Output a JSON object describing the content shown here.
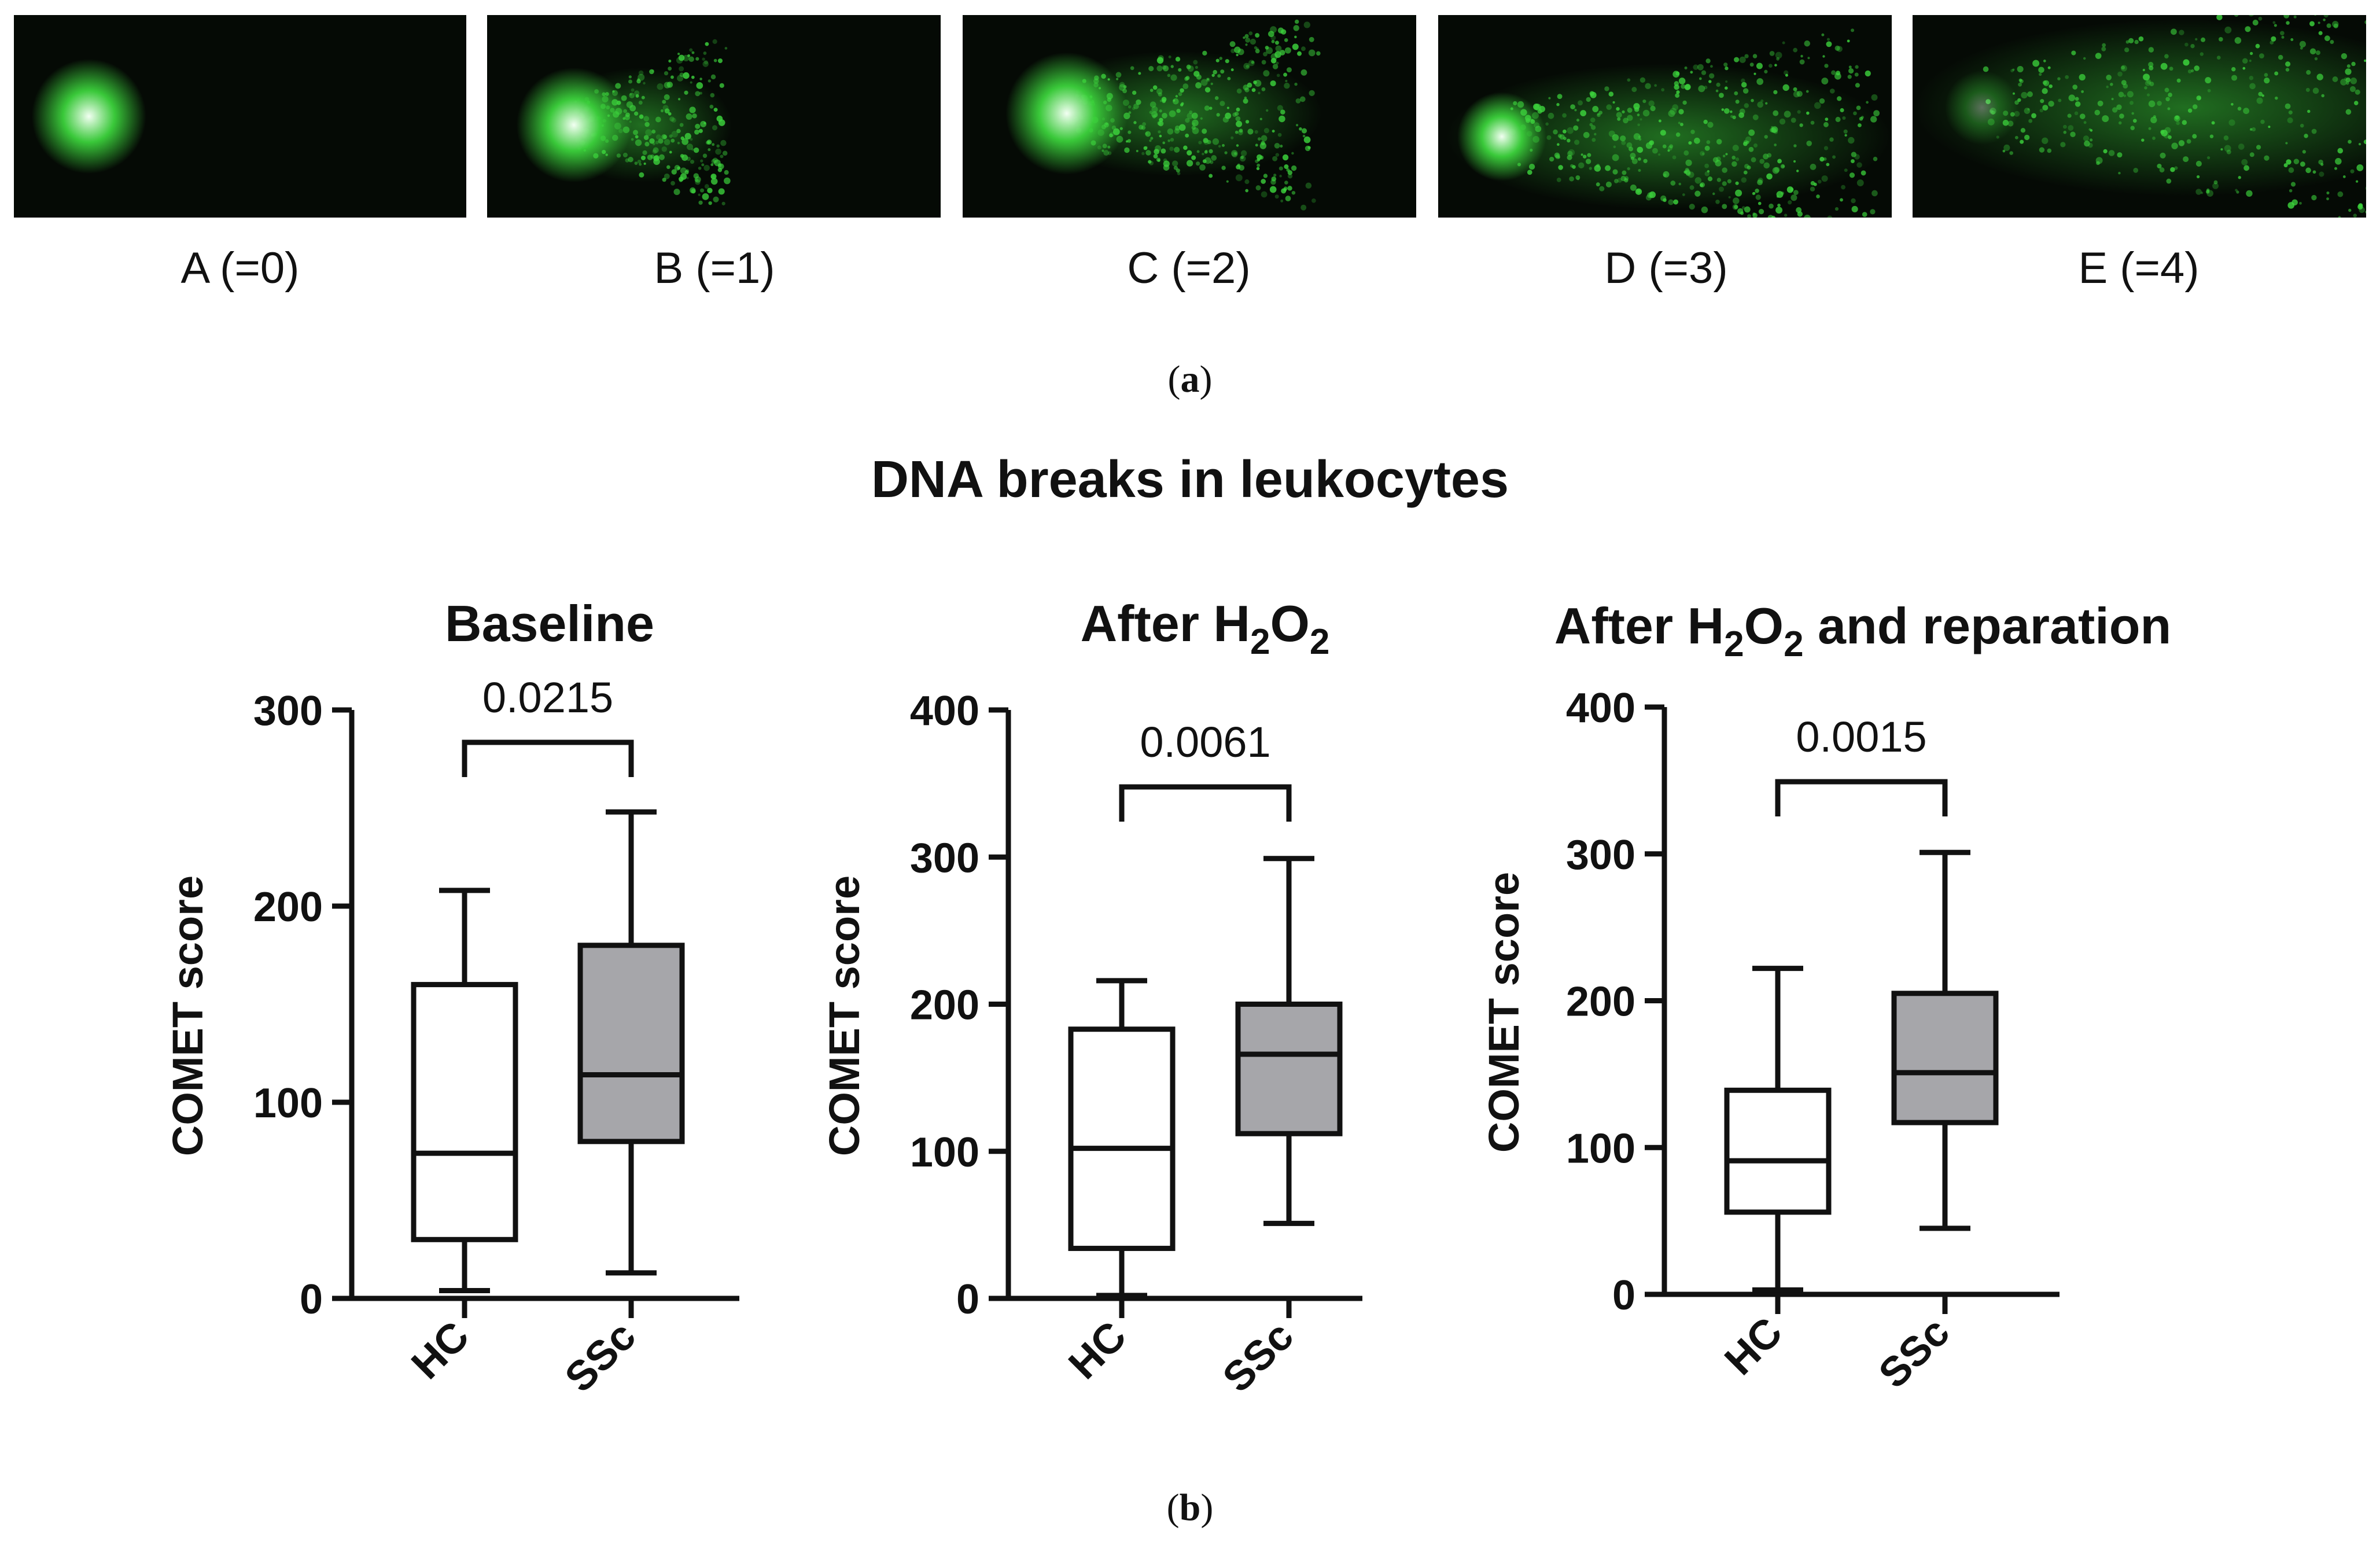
{
  "panel_a": {
    "caption": {
      "pre": "(",
      "letter": "a",
      "post": ")"
    },
    "comets": [
      {
        "label": "A (=0)",
        "score": 0
      },
      {
        "label": "B (=1)",
        "score": 1
      },
      {
        "label": "C (=2)",
        "score": 2
      },
      {
        "label": "D (=3)",
        "score": 3
      },
      {
        "label": "E (=4)",
        "score": 4
      }
    ]
  },
  "panel_b": {
    "caption": {
      "pre": "(",
      "letter": "b",
      "post": ")"
    },
    "title": "DNA breaks in leukocytes"
  },
  "colors": {
    "comet_glow": "#3cd23c",
    "comet_head": "#f2fff2",
    "hc_box": "#ffffff",
    "ssc_box": "#a6a6aa",
    "stroke": "#111111"
  },
  "chart_data": [
    {
      "type": "box",
      "title": {
        "main": "Baseline",
        "sub1": "",
        "mid": "",
        "sub2": "",
        "rest": ""
      },
      "ylabel": "COMET score",
      "ylim": [
        0,
        300
      ],
      "yticks": [
        0,
        100,
        200,
        300
      ],
      "categories": [
        "HC",
        "SSc"
      ],
      "boxes": [
        {
          "group": "HC",
          "min": 4,
          "q1": 30,
          "median": 74,
          "q3": 160,
          "max": 208
        },
        {
          "group": "SSc",
          "min": 13,
          "q1": 80,
          "median": 114,
          "q3": 180,
          "max": 248
        }
      ],
      "p_value": "0.0215"
    },
    {
      "type": "box",
      "title": {
        "main": "After H",
        "sub1": "2",
        "mid": "O",
        "sub2": "2",
        "rest": ""
      },
      "ylabel": "COMET score",
      "ylim": [
        0,
        400
      ],
      "yticks": [
        0,
        100,
        200,
        300,
        400
      ],
      "categories": [
        "HC",
        "SSc"
      ],
      "boxes": [
        {
          "group": "HC",
          "min": 2,
          "q1": 34,
          "median": 102,
          "q3": 183,
          "max": 216
        },
        {
          "group": "SSc",
          "min": 51,
          "q1": 112,
          "median": 166,
          "q3": 200,
          "max": 299
        }
      ],
      "p_value": "0.0061"
    },
    {
      "type": "box",
      "title": {
        "main": "After H",
        "sub1": "2",
        "mid": "O",
        "sub2": "2",
        "rest": " and reparation"
      },
      "ylabel": "COMET score",
      "ylim": [
        0,
        400
      ],
      "yticks": [
        0,
        100,
        200,
        300,
        400
      ],
      "categories": [
        "HC",
        "SSc"
      ],
      "boxes": [
        {
          "group": "HC",
          "min": 3,
          "q1": 56,
          "median": 91,
          "q3": 139,
          "max": 222
        },
        {
          "group": "SSc",
          "min": 45,
          "q1": 117,
          "median": 151,
          "q3": 205,
          "max": 301
        }
      ],
      "p_value": "0.0015"
    }
  ]
}
